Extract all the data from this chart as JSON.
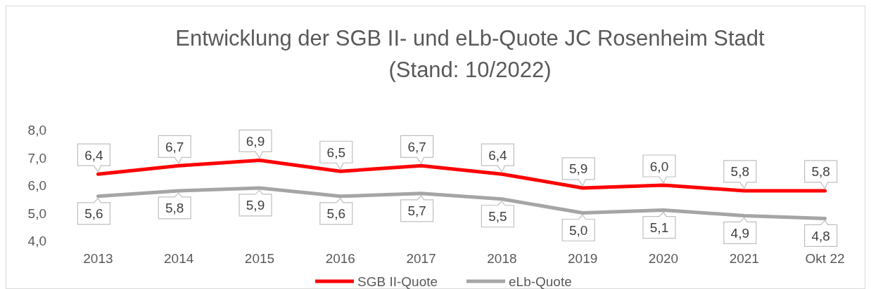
{
  "chart_data": {
    "type": "line",
    "title": "Entwicklung der SGB II- und eLb-Quote JC Rosenheim Stadt\n(Stand: 10/2022)",
    "categories": [
      "2013",
      "2014",
      "2015",
      "2016",
      "2017",
      "2018",
      "2019",
      "2020",
      "2021",
      "Okt 22"
    ],
    "series": [
      {
        "name": "SGB II-Quote",
        "color": "#ff0000",
        "values": [
          6.4,
          6.7,
          6.9,
          6.5,
          6.7,
          6.4,
          5.9,
          6.0,
          5.8,
          5.8
        ],
        "value_labels": [
          "6,4",
          "6,7",
          "6,9",
          "6,5",
          "6,7",
          "6,4",
          "5,9",
          "6,0",
          "5,8",
          "5,8"
        ]
      },
      {
        "name": "eLb-Quote",
        "color": "#a5a5a5",
        "values": [
          5.6,
          5.8,
          5.9,
          5.6,
          5.7,
          5.5,
          5.0,
          5.1,
          4.9,
          4.8
        ],
        "value_labels": [
          "5,6",
          "5,8",
          "5,9",
          "5,6",
          "5,7",
          "5,5",
          "5,0",
          "5,1",
          "4,9",
          "4,8"
        ]
      }
    ],
    "ylim": [
      4,
      8
    ],
    "yticks": [
      {
        "value": 4,
        "label": "4,0"
      },
      {
        "value": 5,
        "label": "5,0"
      },
      {
        "value": 6,
        "label": "6,0"
      },
      {
        "value": 7,
        "label": "7,0"
      },
      {
        "value": 8,
        "label": "8,0"
      }
    ],
    "grid": false,
    "legend": "bottom",
    "marker": "none",
    "line_style": "solid"
  }
}
